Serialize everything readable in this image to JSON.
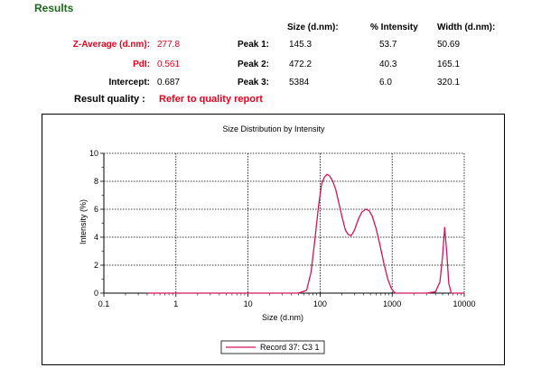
{
  "results": {
    "title": "Results",
    "headers": {
      "size": "Size (d.nm):",
      "intensity": "% Intensity",
      "width": "Width (d.nm):"
    },
    "metrics": [
      {
        "label": "Z-Average (d.nm):",
        "value": "277.8",
        "highlight": true
      },
      {
        "label": "PdI:",
        "value": "0.561",
        "highlight": true
      },
      {
        "label": "Intercept:",
        "value": "0.687",
        "highlight": false
      }
    ],
    "peaks": [
      {
        "label": "Peak 1:",
        "size": "145.3",
        "intensity": "53.7",
        "width": "50.69"
      },
      {
        "label": "Peak 2:",
        "size": "472.2",
        "intensity": "40.3",
        "width": "165.1"
      },
      {
        "label": "Peak 3:",
        "size": "5384",
        "intensity": "6.0",
        "width": "320.1"
      }
    ],
    "quality_label": "Result quality :",
    "quality_value": "Refer to quality report",
    "highlight_color": "#e8001c"
  },
  "chart_data": {
    "type": "line",
    "title": "Size Distribution by Intensity",
    "xlabel": "Size (d.nm)",
    "ylabel": "Intensity (%)",
    "xscale": "log",
    "xlim": [
      0.1,
      10000
    ],
    "ylim": [
      0,
      10
    ],
    "x_ticks": [
      "0.1",
      "1",
      "10",
      "100",
      "1000",
      "10000"
    ],
    "y_ticks": [
      "0",
      "2",
      "4",
      "6",
      "8",
      "10"
    ],
    "grid": true,
    "legend_position": "bottom",
    "series": [
      {
        "name": "Record 37: C3 1",
        "color": "#d4145a",
        "x": [
          0.4,
          1,
          5,
          20,
          50,
          65,
          75,
          85,
          95,
          105,
          115,
          125,
          135,
          150,
          165,
          185,
          205,
          225,
          245,
          270,
          300,
          340,
          380,
          430,
          480,
          530,
          600,
          680,
          770,
          870,
          980,
          1100,
          1300,
          2000,
          3000,
          4000,
          4600,
          5000,
          5350,
          5700,
          6100,
          6600,
          8000,
          10000
        ],
        "values": [
          0,
          0,
          0,
          0,
          0,
          0.2,
          1.5,
          3.9,
          6.2,
          7.8,
          8.3,
          8.5,
          8.4,
          8.0,
          7.4,
          6.3,
          5.3,
          4.5,
          4.2,
          4.1,
          4.5,
          5.3,
          5.8,
          6.0,
          5.9,
          5.5,
          4.6,
          3.4,
          2.1,
          1.0,
          0.3,
          0,
          0,
          0,
          0,
          0.1,
          0.8,
          2.6,
          4.7,
          3.0,
          0.7,
          0,
          0,
          0
        ]
      }
    ]
  }
}
